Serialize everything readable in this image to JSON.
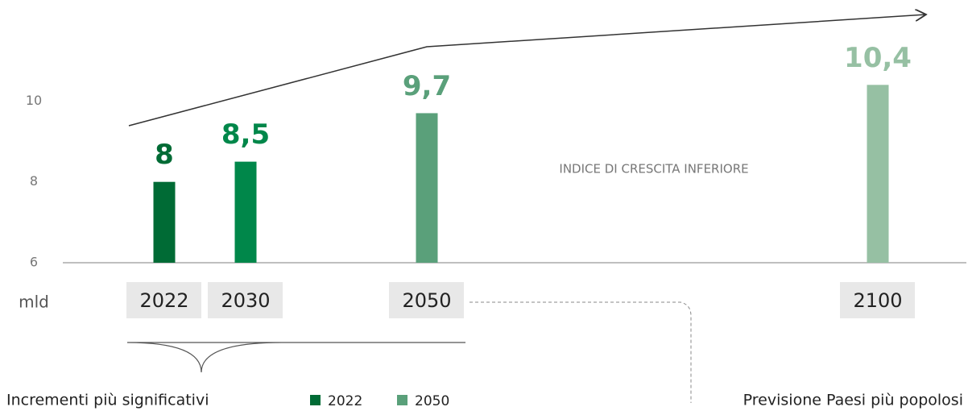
{
  "chart_data": {
    "type": "bar",
    "categories": [
      "2022",
      "2030",
      "2050",
      "2100"
    ],
    "values": [
      8,
      8.5,
      9.7,
      10.4
    ],
    "value_labels": [
      "8",
      "8,5",
      "9,7",
      "10,4"
    ],
    "colors": [
      "#006b35",
      "#00874a",
      "#5aa07a",
      "#96c0a3"
    ],
    "ylim": [
      6,
      12.5
    ],
    "yticks": [
      6,
      8,
      10
    ],
    "ylabel": "mld",
    "annotation": "INDICE DI CRESCITA INFERIORE",
    "legend": [
      {
        "name": "2022",
        "color": "#006b35"
      },
      {
        "name": "2050",
        "color": "#5aa07a"
      }
    ],
    "footer_left": "Incrementi più significativi",
    "footer_right": "Previsione Paesi più popolosi"
  }
}
